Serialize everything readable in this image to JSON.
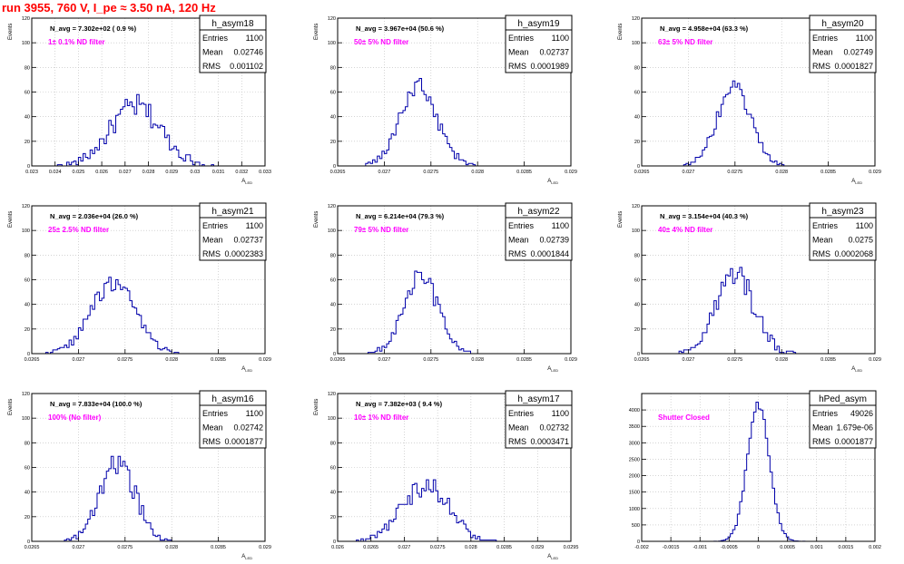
{
  "page_title": "run 3955,   760 V, I_pe ≈ 3.50 nA, 120 Hz",
  "colors": {
    "histogram": "#0000aa",
    "label": "#ff00ff",
    "title": "#ff0000",
    "grid": "#bbbbbb",
    "axis": "#000000"
  },
  "chart_data": [
    {
      "type": "bar",
      "name": "h_asym18",
      "ylabel": "Events",
      "xlabel": "A_LED",
      "navg": "N_avg = 7.302e+02 ( 0.9 %)",
      "label": "1± 0.1% ND filter",
      "stats": [
        [
          "Entries",
          "1100"
        ],
        [
          "Mean",
          "0.02746"
        ],
        [
          "RMS",
          "0.001102"
        ]
      ],
      "xlim": [
        0.023,
        0.033
      ],
      "ylim": [
        0,
        120
      ],
      "xticks": [
        "0.023",
        "0.024",
        "0.025",
        "0.026",
        "0.027",
        "0.028",
        "0.029",
        "0.03",
        "0.031",
        "0.032",
        "0.033"
      ],
      "xtick_values": [
        0.023,
        0.024,
        0.025,
        0.026,
        0.027,
        0.028,
        0.029,
        0.03,
        0.031,
        0.032,
        0.033
      ],
      "yticks": [
        0,
        20,
        40,
        60,
        80,
        100,
        120
      ],
      "mean": 0.02746,
      "sigma": 0.001102,
      "peak": 48,
      "noise": 10,
      "bins": 100
    },
    {
      "type": "bar",
      "name": "h_asym19",
      "ylabel": "Events",
      "xlabel": "A_LED",
      "navg": "N_avg = 3.967e+04 (50.6 %)",
      "label": "50± 5% ND filter",
      "stats": [
        [
          "Entries",
          "1100"
        ],
        [
          "Mean",
          "0.02737"
        ],
        [
          "RMS",
          "0.0001989"
        ]
      ],
      "xlim": [
        0.0265,
        0.029
      ],
      "ylim": [
        0,
        120
      ],
      "xticks": [
        "0.0265",
        "0.027",
        "0.0275",
        "0.028",
        "0.0285",
        "0.029"
      ],
      "xtick_values": [
        0.0265,
        0.027,
        0.0275,
        0.028,
        0.0285,
        0.029
      ],
      "yticks": [
        0,
        20,
        40,
        60,
        80,
        100,
        120
      ],
      "mean": 0.02737,
      "sigma": 0.0001989,
      "peak": 64,
      "noise": 9,
      "bins": 100
    },
    {
      "type": "bar",
      "name": "h_asym20",
      "ylabel": "Events",
      "xlabel": "A_LED",
      "navg": "N_avg = 4.958e+04 (63.3 %)",
      "label": "63± 5% ND filter",
      "stats": [
        [
          "Entries",
          "1100"
        ],
        [
          "Mean",
          "0.02749"
        ],
        [
          "RMS",
          "0.0001827"
        ]
      ],
      "xlim": [
        0.0265,
        0.029
      ],
      "ylim": [
        0,
        120
      ],
      "xticks": [
        "0.0265",
        "0.027",
        "0.0275",
        "0.028",
        "0.0285",
        "0.029"
      ],
      "xtick_values": [
        0.0265,
        0.027,
        0.0275,
        0.028,
        0.0285,
        0.029
      ],
      "yticks": [
        0,
        20,
        40,
        60,
        80,
        100,
        120
      ],
      "mean": 0.02749,
      "sigma": 0.0001827,
      "peak": 63,
      "noise": 6,
      "bins": 100
    },
    {
      "type": "bar",
      "name": "h_asym21",
      "ylabel": "Events",
      "xlabel": "A_LED",
      "navg": "N_avg = 2.036e+04 (26.0 %)",
      "label": "25± 2.5% ND filter",
      "stats": [
        [
          "Entries",
          "1100"
        ],
        [
          "Mean",
          "0.02737"
        ],
        [
          "RMS",
          "0.0002383"
        ]
      ],
      "xlim": [
        0.0265,
        0.029
      ],
      "ylim": [
        0,
        120
      ],
      "xticks": [
        "0.0265",
        "0.027",
        "0.0275",
        "0.028",
        "0.0285",
        "0.029"
      ],
      "xtick_values": [
        0.0265,
        0.027,
        0.0275,
        0.028,
        0.0285,
        0.029
      ],
      "yticks": [
        0,
        20,
        40,
        60,
        80,
        100,
        120
      ],
      "mean": 0.02737,
      "sigma": 0.0002383,
      "peak": 56,
      "noise": 8,
      "bins": 100
    },
    {
      "type": "bar",
      "name": "h_asym22",
      "ylabel": "Events",
      "xlabel": "A_LED",
      "navg": "N_avg = 6.214e+04 (79.3 %)",
      "label": "79± 5% ND filter",
      "stats": [
        [
          "Entries",
          "1100"
        ],
        [
          "Mean",
          "0.02739"
        ],
        [
          "RMS",
          "0.0001844"
        ]
      ],
      "xlim": [
        0.0265,
        0.029
      ],
      "ylim": [
        0,
        120
      ],
      "xticks": [
        "0.0265",
        "0.027",
        "0.0275",
        "0.028",
        "0.0285",
        "0.029"
      ],
      "xtick_values": [
        0.0265,
        0.027,
        0.0275,
        0.028,
        0.0285,
        0.029
      ],
      "yticks": [
        0,
        20,
        40,
        60,
        80,
        100,
        120
      ],
      "mean": 0.02739,
      "sigma": 0.0001844,
      "peak": 62,
      "noise": 8,
      "bins": 100
    },
    {
      "type": "bar",
      "name": "h_asym23",
      "ylabel": "Events",
      "xlabel": "A_LED",
      "navg": "N_avg = 3.154e+04 (40.3 %)",
      "label": "40± 4% ND filter",
      "stats": [
        [
          "Entries",
          "1100"
        ],
        [
          "Mean",
          "0.0275"
        ],
        [
          "RMS",
          "0.0002068"
        ]
      ],
      "xlim": [
        0.0265,
        0.029
      ],
      "ylim": [
        0,
        120
      ],
      "xticks": [
        "0.0265",
        "0.027",
        "0.0275",
        "0.028",
        "0.0285",
        "0.029"
      ],
      "xtick_values": [
        0.0265,
        0.027,
        0.0275,
        0.028,
        0.0285,
        0.029
      ],
      "yticks": [
        0,
        20,
        40,
        60,
        80,
        100,
        120
      ],
      "mean": 0.0275,
      "sigma": 0.0002068,
      "peak": 62,
      "noise": 12,
      "bins": 100
    },
    {
      "type": "bar",
      "name": "h_asym16",
      "ylabel": "Events",
      "xlabel": "A_LED",
      "navg": "N_avg = 7.833e+04 (100.0 %)",
      "label": "100% (No filter)",
      "stats": [
        [
          "Entries",
          "1100"
        ],
        [
          "Mean",
          "0.02742"
        ],
        [
          "RMS",
          "0.0001877"
        ]
      ],
      "xlim": [
        0.0265,
        0.029
      ],
      "ylim": [
        0,
        120
      ],
      "xticks": [
        "0.0265",
        "0.027",
        "0.0275",
        "0.028",
        "0.0285",
        "0.029"
      ],
      "xtick_values": [
        0.0265,
        0.027,
        0.0275,
        0.028,
        0.0285,
        0.029
      ],
      "yticks": [
        0,
        20,
        40,
        60,
        80,
        100,
        120
      ],
      "mean": 0.02742,
      "sigma": 0.0001877,
      "peak": 64,
      "noise": 10,
      "bins": 100
    },
    {
      "type": "bar",
      "name": "h_asym17",
      "ylabel": "Events",
      "xlabel": "A_LED",
      "navg": "N_avg = 7.382e+03 ( 9.4 %)",
      "label": "10± 1% ND filter",
      "stats": [
        [
          "Entries",
          "1100"
        ],
        [
          "Mean",
          "0.02732"
        ],
        [
          "RMS",
          "0.0003471"
        ]
      ],
      "xlim": [
        0.026,
        0.0295
      ],
      "ylim": [
        0,
        120
      ],
      "xticks": [
        "0.026",
        "0.0265",
        "0.027",
        "0.0275",
        "0.028",
        "0.0285",
        "0.029",
        "0.0295"
      ],
      "xtick_values": [
        0.026,
        0.0265,
        0.027,
        0.0275,
        0.028,
        0.0285,
        0.029,
        0.0295
      ],
      "yticks": [
        0,
        20,
        40,
        60,
        80,
        100,
        120
      ],
      "mean": 0.02732,
      "sigma": 0.0003471,
      "peak": 46,
      "noise": 9,
      "bins": 100
    },
    {
      "type": "bar",
      "name": "hPed_asym",
      "ylabel": "",
      "xlabel": "",
      "navg": "",
      "label": "Shutter Closed",
      "stats": [
        [
          "Entries",
          "49026"
        ],
        [
          "Mean",
          "1.679e-06"
        ],
        [
          "RMS",
          "0.0001877"
        ]
      ],
      "xlim": [
        -0.002,
        0.002
      ],
      "ylim": [
        0,
        4500
      ],
      "xticks": [
        "-0.002",
        "-0.0015",
        "-0.001",
        "-0.0005",
        "0",
        "0.0005",
        "0.001",
        "0.0015",
        "0.002"
      ],
      "xtick_values": [
        -0.002,
        -0.0015,
        -0.001,
        -0.0005,
        0,
        0.0005,
        0.001,
        0.0015,
        0.002
      ],
      "yticks": [
        0,
        500,
        1000,
        1500,
        2000,
        2500,
        3000,
        3500,
        4000
      ],
      "mean": 0.0,
      "sigma": 0.0001877,
      "peak": 4150,
      "noise": 140,
      "bins": 100
    }
  ]
}
